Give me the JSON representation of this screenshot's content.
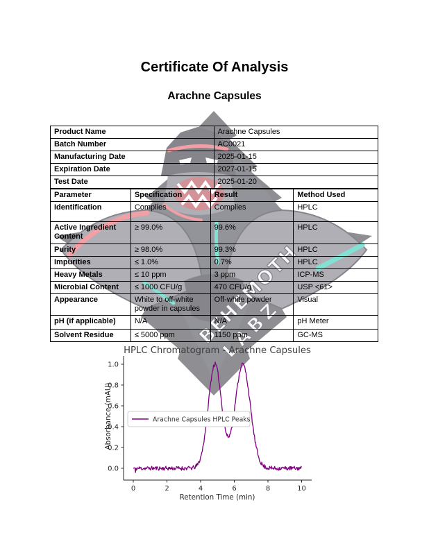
{
  "header": {
    "title": "Certificate Of Analysis",
    "subtitle": "Arachne Capsules"
  },
  "watermark": {
    "line1": "BEHEMOTH",
    "line2": "LABZ",
    "colors": {
      "diamond": "#32323c",
      "body_dark": "#23232d",
      "body_gray": "#6e6e7a",
      "accent_red": "#e8525f",
      "accent_teal": "#1ec9b2",
      "mouth_red": "#b03a44",
      "text_fill": "#f2f3f7",
      "text_stroke": "#2a2a33"
    }
  },
  "product_table": {
    "rows": [
      {
        "label": "Product Name",
        "value": "Arachne Capsules"
      },
      {
        "label": "Batch Number",
        "value": "AC0021"
      },
      {
        "label": "Manufacturing Date",
        "value": "2025-01-15"
      },
      {
        "label": "Expiration Date",
        "value": "2027-01-15"
      },
      {
        "label": "Test Date",
        "value": "2025-01-20"
      }
    ]
  },
  "results_table": {
    "headers": [
      "Parameter",
      "Specification",
      "Result",
      "Method Used"
    ],
    "rows": [
      {
        "parameter": "Identification",
        "specification": "Complies",
        "result": "Complies",
        "method": "HPLC"
      },
      {
        "parameter": "Active Ingredient Content",
        "specification": "≥ 99.0%",
        "result": "99.6%",
        "method": "HPLC"
      },
      {
        "parameter": "Purity",
        "specification": "≥ 98.0%",
        "result": "99.3%",
        "method": "HPLC"
      },
      {
        "parameter": "Impurities",
        "specification": "≤ 1.0%",
        "result": "0.7%",
        "method": "HPLC"
      },
      {
        "parameter": "Heavy Metals",
        "specification": "≤ 10 ppm",
        "result": "3 ppm",
        "method": "ICP-MS"
      },
      {
        "parameter": "Microbial Content",
        "specification": "≤ 1000 CFU/g",
        "result": "470 CFU/g",
        "method": "USP <61>"
      },
      {
        "parameter": "Appearance",
        "specification": "White to off-white powder in capsules",
        "result": "Off-white powder",
        "method": "Visual"
      },
      {
        "parameter": "pH (if applicable)",
        "specification": "N/A",
        "result": "N/A",
        "method": "pH Meter"
      },
      {
        "parameter": "Solvent Residue",
        "specification": "≤ 5000 ppm",
        "result": "1150 ppm",
        "method": "GC-MS"
      }
    ]
  },
  "chart_data": {
    "type": "line",
    "title": "HPLC Chromatogram - Arachne Capsules",
    "xlabel": "Retention Time (min)",
    "ylabel": "Absorbance (mAU)",
    "x_ticks": [
      0,
      2,
      4,
      6,
      8,
      10
    ],
    "y_ticks": [
      0.0,
      0.2,
      0.4,
      0.6,
      0.8,
      1.0
    ],
    "xlim": [
      -0.5,
      10.5
    ],
    "ylim": [
      -0.12,
      1.08
    ],
    "grid": false,
    "legend": {
      "label": "Arachne Capsules HPLC Peaks",
      "position": "center left"
    },
    "series": [
      {
        "name": "Arachne Capsules HPLC Peaks",
        "color": "#800080",
        "peaks": [
          {
            "center": 4.85,
            "height": 1.0,
            "sigma": 0.4
          },
          {
            "center": 6.5,
            "height": 1.0,
            "sigma": 0.45
          }
        ],
        "baseline_noise": 0.02,
        "x_range": [
          0,
          10
        ],
        "n_points": 300
      }
    ]
  }
}
